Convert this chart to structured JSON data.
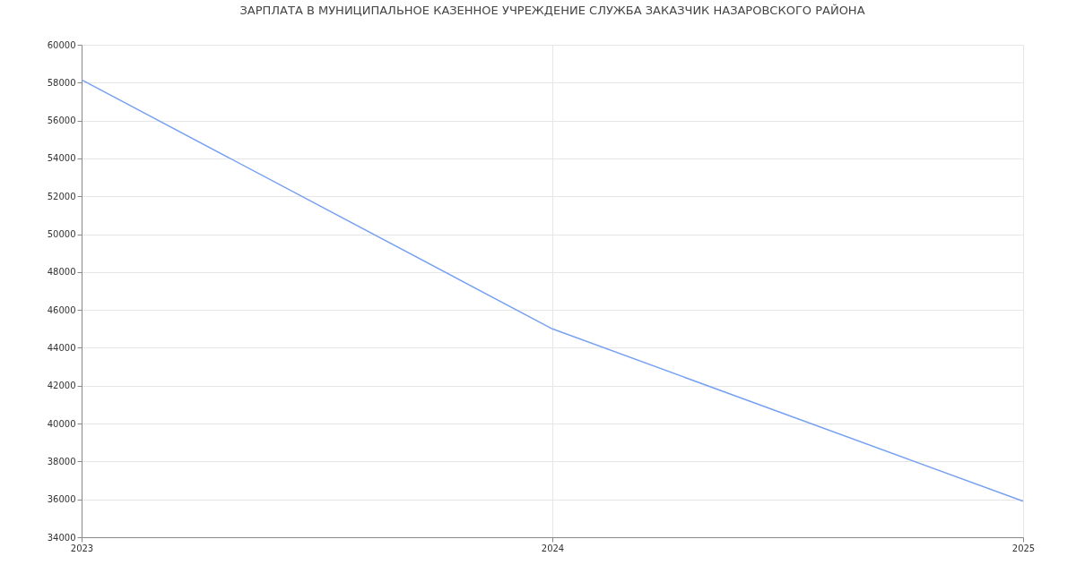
{
  "chart_data": {
    "type": "line",
    "title": "ЗАРПЛАТА В МУНИЦИПАЛЬНОЕ КАЗЕННОЕ УЧРЕЖДЕНИЕ СЛУЖБА ЗАКАЗЧИК НАЗАРОВСКОГО РАЙОНА",
    "x": [
      2023,
      2024,
      2025
    ],
    "series": [
      {
        "color": "#77a1f2",
        "values": [
          58150,
          45000,
          35900
        ]
      }
    ],
    "xlim": [
      2023,
      2025
    ],
    "xticks": [
      2023,
      2024,
      2025
    ],
    "ylim": [
      34000,
      60000
    ],
    "yticks": [
      34000,
      36000,
      38000,
      40000,
      42000,
      44000,
      46000,
      48000,
      50000,
      52000,
      54000,
      56000,
      58000,
      60000
    ],
    "grid": true,
    "marker": "none",
    "line_style": "solid"
  }
}
